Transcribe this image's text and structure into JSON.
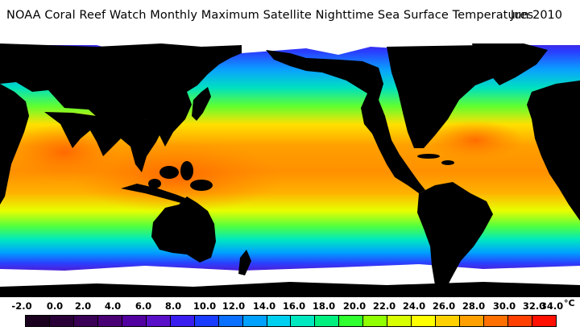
{
  "header": {
    "title": "NOAA Coral Reef Watch Monthly Maximum Satellite Nighttime Sea Surface Temperatures",
    "date": "Jun 2010"
  },
  "legend": {
    "unit": "°C",
    "ticks": [
      "-2.0",
      "0.0",
      "2.0",
      "4.0",
      "6.0",
      "8.0",
      "10.0",
      "12.0",
      "14.0",
      "16.0",
      "18.0",
      "20.0",
      "22.0",
      "24.0",
      "26.0",
      "28.0",
      "30.0",
      "32.0",
      "34.0"
    ],
    "colors": [
      "#1a001e",
      "#2a0038",
      "#3a0055",
      "#4a0075",
      "#5200a0",
      "#5a10c8",
      "#3a1ef0",
      "#1a3cff",
      "#0a70ff",
      "#00a0ff",
      "#00d0f0",
      "#00e8c0",
      "#00f080",
      "#30ff30",
      "#90ff00",
      "#d8ff00",
      "#ffff00",
      "#ffd000",
      "#ffa000",
      "#ff7000",
      "#ff4000",
      "#ff1000"
    ]
  },
  "map": {
    "land_color": "#000000",
    "ice_color": "#ffffff"
  }
}
